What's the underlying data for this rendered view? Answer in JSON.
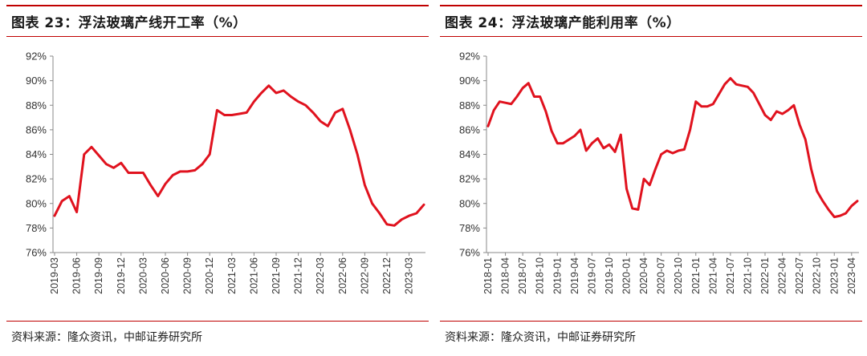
{
  "charts": [
    {
      "title": "图表 23：浮法玻璃产线开工率（%）",
      "source": "资料来源：隆众资讯，中邮证券研究所"
    },
    {
      "title": "图表 24：浮法玻璃产能利用率（%）",
      "source": "资料来源：隆众资讯，中邮证券研究所"
    }
  ],
  "chart_data": [
    {
      "type": "line",
      "title": "图表 23：浮法玻璃产线开工率（%）",
      "xlabel": "",
      "ylabel": "",
      "ylim": [
        76,
        92
      ],
      "y_ticks": [
        "92%",
        "90%",
        "88%",
        "86%",
        "84%",
        "82%",
        "80%",
        "78%",
        "76%"
      ],
      "x_ticks": [
        "2019-03",
        "2019-06",
        "2019-09",
        "2019-12",
        "2020-03",
        "2020-06",
        "2020-09",
        "2020-12",
        "2021-03",
        "2021-06",
        "2021-09",
        "2021-12",
        "2022-03",
        "2022-06",
        "2022-09",
        "2022-12",
        "2023-03"
      ],
      "color": "#e0121e",
      "series": [
        {
          "x": [
            "2019-03",
            "2019-04",
            "2019-05",
            "2019-06",
            "2019-07",
            "2019-08",
            "2019-09",
            "2019-10",
            "2019-11",
            "2019-12",
            "2020-01",
            "2020-02",
            "2020-03",
            "2020-04",
            "2020-05",
            "2020-06",
            "2020-07",
            "2020-08",
            "2020-09",
            "2020-10",
            "2020-11",
            "2020-12",
            "2021-01",
            "2021-02",
            "2021-03",
            "2021-04",
            "2021-05",
            "2021-06",
            "2021-07",
            "2021-08",
            "2021-09",
            "2021-10",
            "2021-11",
            "2021-12",
            "2022-01",
            "2022-02",
            "2022-03",
            "2022-04",
            "2022-05",
            "2022-06",
            "2022-07",
            "2022-08",
            "2022-09",
            "2022-10",
            "2022-11",
            "2022-12",
            "2023-01",
            "2023-02",
            "2023-03",
            "2023-04",
            "2023-05"
          ],
          "values": [
            79.0,
            80.2,
            80.6,
            79.3,
            84.0,
            84.6,
            83.9,
            83.2,
            82.9,
            83.3,
            82.5,
            82.5,
            82.5,
            81.5,
            80.6,
            81.6,
            82.3,
            82.6,
            82.6,
            82.7,
            83.2,
            84.0,
            87.6,
            87.2,
            87.2,
            87.3,
            87.4,
            88.3,
            89.0,
            89.6,
            89.0,
            89.2,
            88.7,
            88.3,
            88.0,
            87.4,
            86.7,
            86.3,
            87.4,
            87.7,
            86.0,
            84.0,
            81.5,
            80.0,
            79.2,
            78.3,
            78.2,
            78.7,
            79.0,
            79.2,
            79.9
          ]
        }
      ]
    },
    {
      "type": "line",
      "title": "图表 24：浮法玻璃产能利用率（%）",
      "xlabel": "",
      "ylabel": "",
      "ylim": [
        76,
        92
      ],
      "y_ticks": [
        "92%",
        "90%",
        "88%",
        "86%",
        "84%",
        "82%",
        "80%",
        "78%",
        "76%"
      ],
      "x_ticks": [
        "2018-01",
        "2018-04",
        "2018-07",
        "2018-10",
        "2019-01",
        "2019-04",
        "2019-07",
        "2019-10",
        "2020-01",
        "2020-04",
        "2020-07",
        "2020-10",
        "2021-01",
        "2021-04",
        "2021-07",
        "2021-10",
        "2022-01",
        "2022-04",
        "2022-07",
        "2022-10",
        "2023-01",
        "2023-04"
      ],
      "color": "#e0121e",
      "series": [
        {
          "x": [
            "2018-01",
            "2018-02",
            "2018-03",
            "2018-04",
            "2018-05",
            "2018-06",
            "2018-07",
            "2018-08",
            "2018-09",
            "2018-10",
            "2018-11",
            "2018-12",
            "2019-01",
            "2019-02",
            "2019-03",
            "2019-04",
            "2019-05",
            "2019-06",
            "2019-07",
            "2019-08",
            "2019-09",
            "2019-10",
            "2019-11",
            "2019-12",
            "2020-01",
            "2020-02",
            "2020-03",
            "2020-04",
            "2020-05",
            "2020-06",
            "2020-07",
            "2020-08",
            "2020-09",
            "2020-10",
            "2020-11",
            "2020-12",
            "2021-01",
            "2021-02",
            "2021-03",
            "2021-04",
            "2021-05",
            "2021-06",
            "2021-07",
            "2021-08",
            "2021-09",
            "2021-10",
            "2021-11",
            "2021-12",
            "2022-01",
            "2022-02",
            "2022-03",
            "2022-04",
            "2022-05",
            "2022-06",
            "2022-07",
            "2022-08",
            "2022-09",
            "2022-10",
            "2022-11",
            "2022-12",
            "2023-01",
            "2023-02",
            "2023-03",
            "2023-04",
            "2023-05"
          ],
          "values": [
            86.3,
            87.6,
            88.3,
            88.2,
            88.1,
            88.7,
            89.4,
            89.8,
            88.7,
            88.7,
            87.5,
            85.9,
            84.9,
            84.9,
            85.2,
            85.5,
            86.0,
            84.3,
            84.9,
            85.3,
            84.5,
            84.8,
            84.2,
            85.6,
            81.2,
            79.6,
            79.5,
            82.0,
            81.5,
            82.8,
            84.0,
            84.3,
            84.1,
            84.3,
            84.4,
            86.0,
            88.3,
            87.9,
            87.9,
            88.1,
            88.9,
            89.7,
            90.2,
            89.7,
            89.6,
            89.5,
            89.0,
            88.1,
            87.2,
            86.8,
            87.5,
            87.3,
            87.6,
            88.0,
            86.4,
            85.2,
            82.8,
            81.0,
            80.2,
            79.5,
            78.9,
            79.0,
            79.2,
            79.8,
            80.2
          ]
        }
      ]
    }
  ]
}
